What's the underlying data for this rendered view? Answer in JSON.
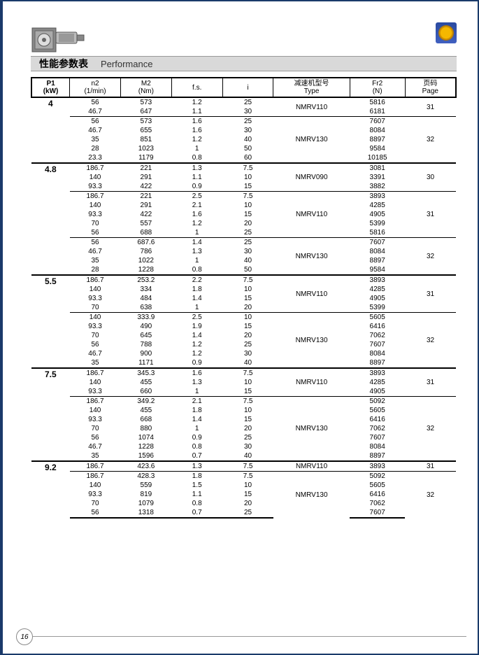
{
  "title_zh": "性能参数表",
  "title_en": "Performance",
  "page_number": "16",
  "col_widths_pct": [
    9,
    12,
    12,
    12,
    12,
    18,
    13,
    12
  ],
  "headers": [
    {
      "l1": "P1",
      "l2": "(kW)"
    },
    {
      "l1": "n2",
      "l2": "(1/min)"
    },
    {
      "l1": "M2",
      "l2": "(Nm)"
    },
    {
      "l1": "f.s.",
      "l2": ""
    },
    {
      "l1": "i",
      "l2": ""
    },
    {
      "l1": "减速机型号",
      "l2": "Type"
    },
    {
      "l1": "Fr2",
      "l2": "(N)"
    },
    {
      "l1": "页码",
      "l2": "Page"
    }
  ],
  "groups": [
    {
      "p1": "4",
      "subgroups": [
        {
          "type": "NMRV110",
          "page": "31",
          "rows": [
            {
              "n2": "56",
              "m2": "573",
              "fs": "1.2",
              "i": "25",
              "fr2": "5816"
            },
            {
              "n2": "46.7",
              "m2": "647",
              "fs": "1.1",
              "i": "30",
              "fr2": "6181"
            }
          ]
        },
        {
          "type": "NMRV130",
          "page": "32",
          "rows": [
            {
              "n2": "56",
              "m2": "573",
              "fs": "1.6",
              "i": "25",
              "fr2": "7607"
            },
            {
              "n2": "46.7",
              "m2": "655",
              "fs": "1.6",
              "i": "30",
              "fr2": "8084"
            },
            {
              "n2": "35",
              "m2": "851",
              "fs": "1.2",
              "i": "40",
              "fr2": "8897"
            },
            {
              "n2": "28",
              "m2": "1023",
              "fs": "1",
              "i": "50",
              "fr2": "9584"
            },
            {
              "n2": "23.3",
              "m2": "1179",
              "fs": "0.8",
              "i": "60",
              "fr2": "10185"
            }
          ]
        }
      ]
    },
    {
      "p1": "4.8",
      "subgroups": [
        {
          "type": "NMRV090",
          "page": "30",
          "rows": [
            {
              "n2": "186.7",
              "m2": "221",
              "fs": "1.3",
              "i": "7.5",
              "fr2": "3081"
            },
            {
              "n2": "140",
              "m2": "291",
              "fs": "1.1",
              "i": "10",
              "fr2": "3391"
            },
            {
              "n2": "93.3",
              "m2": "422",
              "fs": "0.9",
              "i": "15",
              "fr2": "3882"
            }
          ]
        },
        {
          "type": "NMRV110",
          "page": "31",
          "rows": [
            {
              "n2": "186.7",
              "m2": "221",
              "fs": "2.5",
              "i": "7.5",
              "fr2": "3893"
            },
            {
              "n2": "140",
              "m2": "291",
              "fs": "2.1",
              "i": "10",
              "fr2": "4285"
            },
            {
              "n2": "93.3",
              "m2": "422",
              "fs": "1.6",
              "i": "15",
              "fr2": "4905"
            },
            {
              "n2": "70",
              "m2": "557",
              "fs": "1.2",
              "i": "20",
              "fr2": "5399"
            },
            {
              "n2": "56",
              "m2": "688",
              "fs": "1",
              "i": "25",
              "fr2": "5816"
            }
          ]
        },
        {
          "type": "NMRV130",
          "page": "32",
          "rows": [
            {
              "n2": "56",
              "m2": "687.6",
              "fs": "1.4",
              "i": "25",
              "fr2": "7607"
            },
            {
              "n2": "46.7",
              "m2": "786",
              "fs": "1.3",
              "i": "30",
              "fr2": "8084"
            },
            {
              "n2": "35",
              "m2": "1022",
              "fs": "1",
              "i": "40",
              "fr2": "8897"
            },
            {
              "n2": "28",
              "m2": "1228",
              "fs": "0.8",
              "i": "50",
              "fr2": "9584"
            }
          ]
        }
      ]
    },
    {
      "p1": "5.5",
      "subgroups": [
        {
          "type": "NMRV110",
          "page": "31",
          "rows": [
            {
              "n2": "186.7",
              "m2": "253.2",
              "fs": "2.2",
              "i": "7.5",
              "fr2": "3893"
            },
            {
              "n2": "140",
              "m2": "334",
              "fs": "1.8",
              "i": "10",
              "fr2": "4285"
            },
            {
              "n2": "93.3",
              "m2": "484",
              "fs": "1.4",
              "i": "15",
              "fr2": "4905"
            },
            {
              "n2": "70",
              "m2": "638",
              "fs": "1",
              "i": "20",
              "fr2": "5399"
            }
          ]
        },
        {
          "type": "NMRV130",
          "page": "32",
          "rows": [
            {
              "n2": "140",
              "m2": "333.9",
              "fs": "2.5",
              "i": "10",
              "fr2": "5605"
            },
            {
              "n2": "93.3",
              "m2": "490",
              "fs": "1.9",
              "i": "15",
              "fr2": "6416"
            },
            {
              "n2": "70",
              "m2": "645",
              "fs": "1.4",
              "i": "20",
              "fr2": "7062"
            },
            {
              "n2": "56",
              "m2": "788",
              "fs": "1.2",
              "i": "25",
              "fr2": "7607"
            },
            {
              "n2": "46.7",
              "m2": "900",
              "fs": "1.2",
              "i": "30",
              "fr2": "8084"
            },
            {
              "n2": "35",
              "m2": "1171",
              "fs": "0.9",
              "i": "40",
              "fr2": "8897"
            }
          ]
        }
      ]
    },
    {
      "p1": "7.5",
      "subgroups": [
        {
          "type": "NMRV110",
          "page": "31",
          "rows": [
            {
              "n2": "186.7",
              "m2": "345.3",
              "fs": "1.6",
              "i": "7.5",
              "fr2": "3893"
            },
            {
              "n2": "140",
              "m2": "455",
              "fs": "1.3",
              "i": "10",
              "fr2": "4285"
            },
            {
              "n2": "93.3",
              "m2": "660",
              "fs": "1",
              "i": "15",
              "fr2": "4905"
            }
          ]
        },
        {
          "type": "NMRV130",
          "page": "32",
          "rows": [
            {
              "n2": "186.7",
              "m2": "349.2",
              "fs": "2.1",
              "i": "7.5",
              "fr2": "5092"
            },
            {
              "n2": "140",
              "m2": "455",
              "fs": "1.8",
              "i": "10",
              "fr2": "5605"
            },
            {
              "n2": "93.3",
              "m2": "668",
              "fs": "1.4",
              "i": "15",
              "fr2": "6416"
            },
            {
              "n2": "70",
              "m2": "880",
              "fs": "1",
              "i": "20",
              "fr2": "7062"
            },
            {
              "n2": "56",
              "m2": "1074",
              "fs": "0.9",
              "i": "25",
              "fr2": "7607"
            },
            {
              "n2": "46.7",
              "m2": "1228",
              "fs": "0.8",
              "i": "30",
              "fr2": "8084"
            },
            {
              "n2": "35",
              "m2": "1596",
              "fs": "0.7",
              "i": "40",
              "fr2": "8897"
            }
          ]
        }
      ]
    },
    {
      "p1": "9.2",
      "subgroups": [
        {
          "type": "NMRV110",
          "page": "31",
          "rows": [
            {
              "n2": "186.7",
              "m2": "423.6",
              "fs": "1.3",
              "i": "7.5",
              "fr2": "3893"
            }
          ]
        },
        {
          "type": "NMRV130",
          "page": "32",
          "rows": [
            {
              "n2": "186.7",
              "m2": "428.3",
              "fs": "1.8",
              "i": "7.5",
              "fr2": "5092"
            },
            {
              "n2": "140",
              "m2": "559",
              "fs": "1.5",
              "i": "10",
              "fr2": "5605"
            },
            {
              "n2": "93.3",
              "m2": "819",
              "fs": "1.1",
              "i": "15",
              "fr2": "6416"
            },
            {
              "n2": "70",
              "m2": "1079",
              "fs": "0.8",
              "i": "20",
              "fr2": "7062"
            },
            {
              "n2": "56",
              "m2": "1318",
              "fs": "0.7",
              "i": "25",
              "fr2": "7607"
            }
          ]
        }
      ]
    }
  ]
}
